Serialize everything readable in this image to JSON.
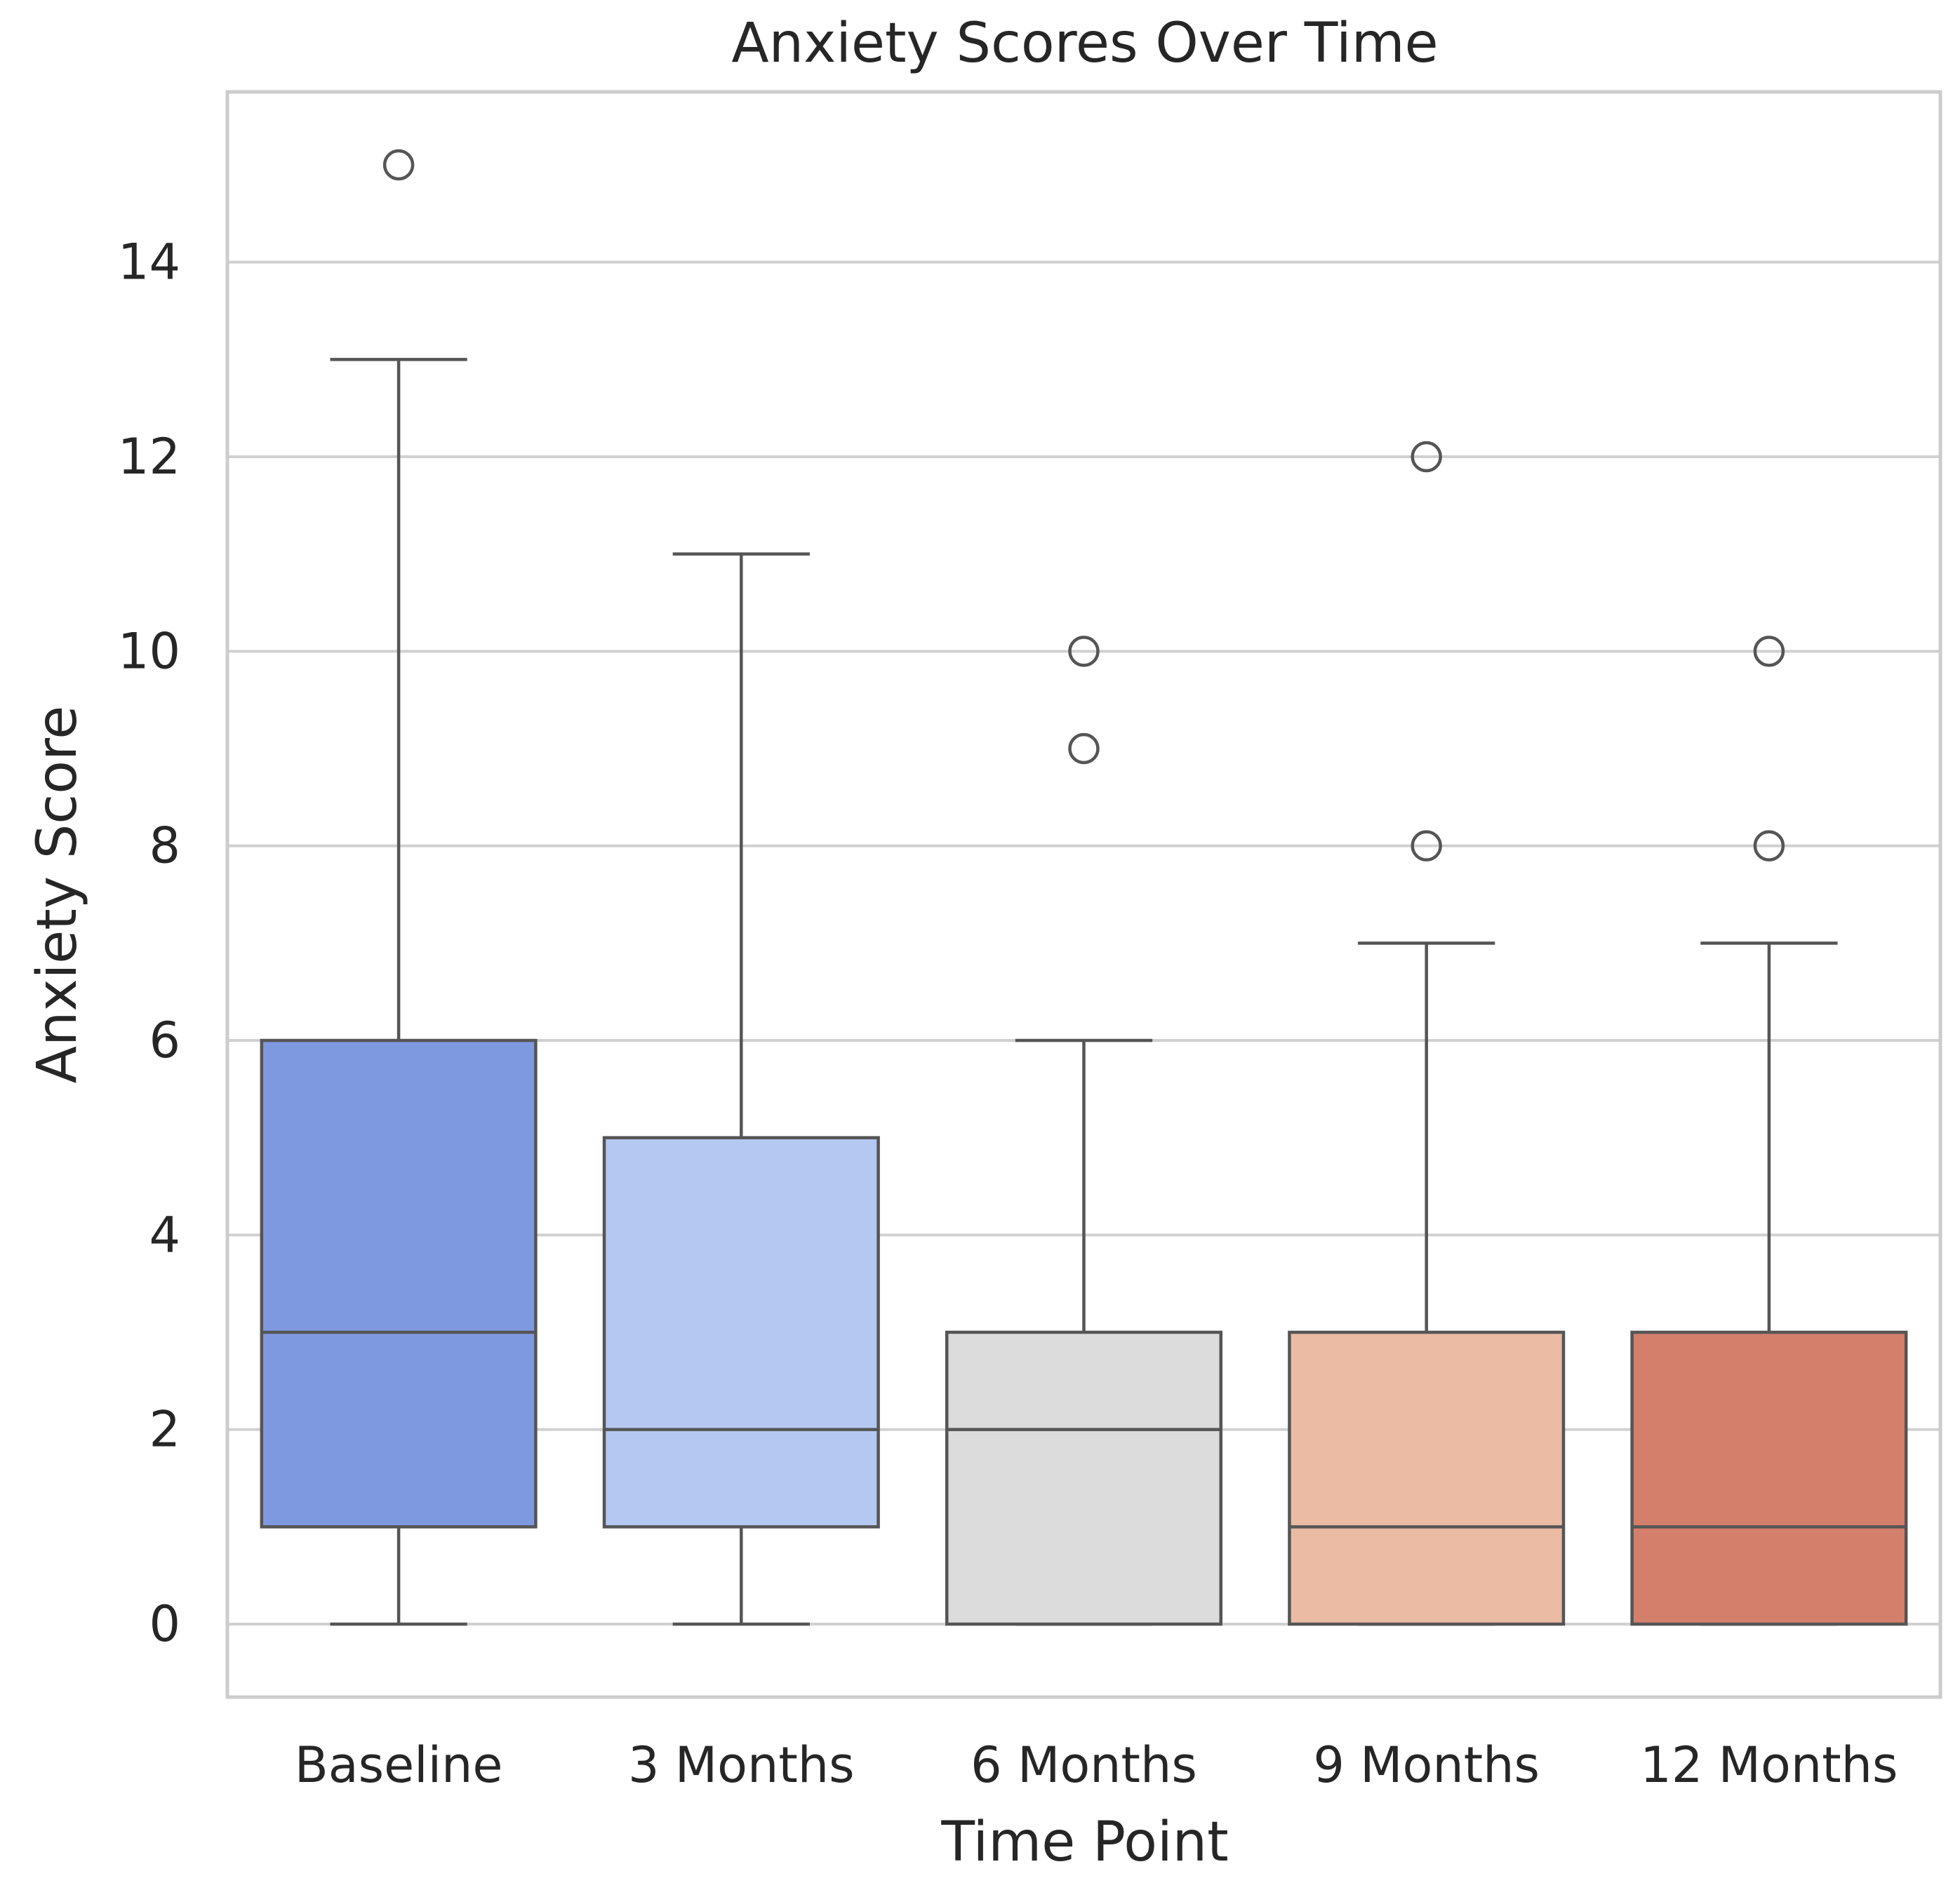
{
  "chart_data": {
    "type": "box",
    "title": "Anxiety Scores Over Time",
    "xlabel": "Time Point",
    "ylabel": "Anxiety Score",
    "ylim": [
      -0.75,
      15.75
    ],
    "yticks": [
      0,
      2,
      4,
      6,
      8,
      10,
      12,
      14
    ],
    "grid": true,
    "categories": [
      "Baseline",
      "3 Months",
      "6 Months",
      "9 Months",
      "12 Months"
    ],
    "colors": [
      "#7f99e1",
      "#b4c8f2",
      "#dcdcdc",
      "#ebbba3",
      "#d47f6b"
    ],
    "boxes": [
      {
        "category": "Baseline",
        "whisker_low": 0,
        "q1": 1,
        "median": 3,
        "q3": 6,
        "whisker_high": 13,
        "outliers": [
          15
        ]
      },
      {
        "category": "3 Months",
        "whisker_low": 0,
        "q1": 1,
        "median": 2,
        "q3": 5,
        "whisker_high": 11,
        "outliers": []
      },
      {
        "category": "6 Months",
        "whisker_low": 0,
        "q1": 0,
        "median": 2,
        "q3": 3,
        "whisker_high": 6,
        "outliers": [
          9,
          10
        ]
      },
      {
        "category": "9 Months",
        "whisker_low": 0,
        "q1": 0,
        "median": 1,
        "q3": 3,
        "whisker_high": 7,
        "outliers": [
          8,
          12
        ]
      },
      {
        "category": "12 Months",
        "whisker_low": 0,
        "q1": 0,
        "median": 1,
        "q3": 3,
        "whisker_high": 7,
        "outliers": [
          8,
          10
        ]
      }
    ]
  }
}
